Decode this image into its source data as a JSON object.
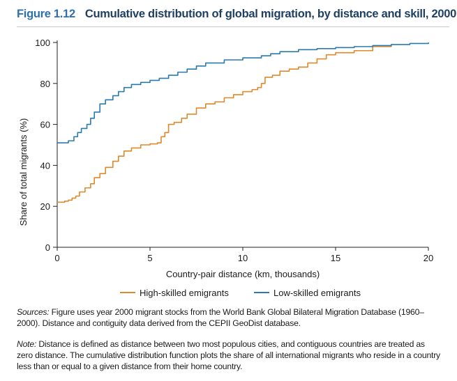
{
  "figure": {
    "label": "Figure 1.12",
    "title": "Cumulative distribution of global migration, by distance and skill, 2000"
  },
  "chart_data": {
    "type": "line",
    "title": "Cumulative distribution of global migration, by distance and skill, 2000",
    "xlabel": "Country-pair distance (km, thousands)",
    "ylabel": "Share of total migrants (%)",
    "xlim": [
      0,
      20
    ],
    "ylim": [
      0,
      100
    ],
    "xticks": [
      0,
      5,
      10,
      15,
      20
    ],
    "yticks": [
      0,
      20,
      40,
      60,
      80,
      100
    ],
    "grid": false,
    "legend_position": "bottom",
    "series": [
      {
        "name": "High-skilled emigrants",
        "color": "#e0892b",
        "x": [
          0,
          0.2,
          0.4,
          0.6,
          0.8,
          1.0,
          1.2,
          1.5,
          1.8,
          2.0,
          2.3,
          2.6,
          3.0,
          3.3,
          3.6,
          4.0,
          4.5,
          5.0,
          5.4,
          5.6,
          5.8,
          6.0,
          6.3,
          6.7,
          7.0,
          7.5,
          8.0,
          8.5,
          9.0,
          9.5,
          10.0,
          10.5,
          10.8,
          11.0,
          11.2,
          11.6,
          12.0,
          12.5,
          13.0,
          13.5,
          14.0,
          14.5,
          15.0,
          16.0,
          17.0,
          18.0
        ],
        "y": [
          22,
          22,
          22.5,
          23,
          24,
          25,
          27,
          29,
          31,
          34,
          36,
          39,
          42,
          44.5,
          47,
          48.5,
          50,
          50.5,
          51,
          54,
          56,
          60,
          61,
          63,
          65,
          68,
          70,
          71,
          73,
          74.5,
          76,
          77,
          78,
          80,
          83,
          84,
          86,
          87,
          88,
          90,
          92,
          94,
          95,
          96,
          98,
          99
        ]
      },
      {
        "name": "Low-skilled emigrants",
        "color": "#2a7ab0",
        "x": [
          0,
          0.3,
          0.6,
          0.9,
          1.1,
          1.3,
          1.6,
          1.8,
          2.0,
          2.3,
          2.6,
          3.0,
          3.3,
          3.6,
          4.0,
          4.5,
          5.0,
          5.5,
          6.0,
          6.5,
          7.0,
          7.5,
          8.0,
          9.0,
          10.0,
          11.0,
          11.5,
          12.0,
          13.0,
          14.0,
          15.0,
          16.0,
          17.0,
          18.0,
          19.0,
          20.0
        ],
        "y": [
          51,
          51,
          52,
          54,
          56,
          58,
          60,
          63,
          66,
          70,
          72,
          74,
          76,
          78,
          79.5,
          80.5,
          81.5,
          82.5,
          84,
          85.5,
          87,
          88.5,
          90,
          91.5,
          92.5,
          93.5,
          94.5,
          95.5,
          96.5,
          97,
          97.5,
          98,
          98.5,
          99,
          99.5,
          100
        ]
      }
    ]
  },
  "notes": {
    "sources_label": "Sources:",
    "sources_text": " Figure uses year 2000 migrant stocks from the World Bank Global Bilateral Migration Database (1960–2000). Distance and contiguity data derived from the CEPII GeoDist database.",
    "note_label": "Note:",
    "note_text": " Distance is defined as distance between two most populous cities, and contiguous countries are treated as zero distance. The cumulative distribution function plots the share of all international migrants who reside in a country less than or equal to a given distance from their home country."
  }
}
